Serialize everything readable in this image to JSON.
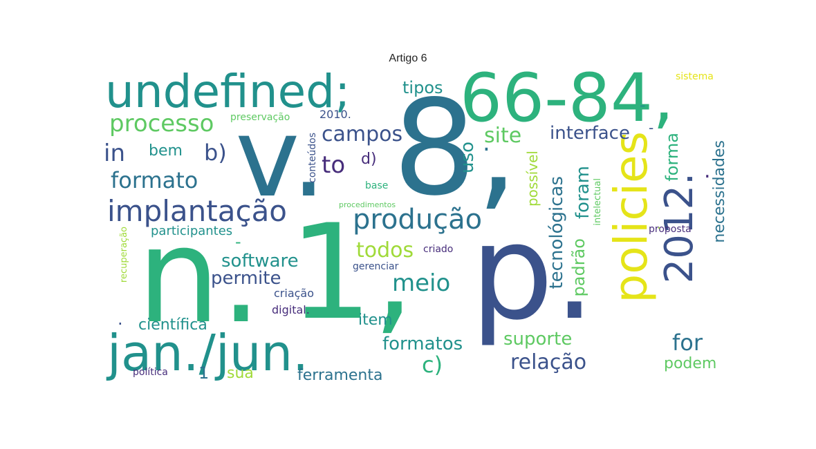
{
  "figure": {
    "title": "Artigo 6"
  },
  "palette": {
    "yellow": "#e5e419",
    "lime": "#a0da39",
    "lightgreen": "#5ec962",
    "green": "#2db27d",
    "teal": "#21918c",
    "blue": "#2c728e",
    "indigo": "#3b528b",
    "purple": "#472d7b",
    "darkpurple": "#440154"
  },
  "words": [
    {
      "text": "undefined;",
      "color": "#21918c"
    },
    {
      "text": "66-84,",
      "color": "#2db27d"
    },
    {
      "text": "v.",
      "color": "#2c728e"
    },
    {
      "text": "8,",
      "color": "#2c728e"
    },
    {
      "text": "n.",
      "color": "#2db27d"
    },
    {
      "text": "1,",
      "color": "#2db27d"
    },
    {
      "text": "p.",
      "color": "#3b528b"
    },
    {
      "text": "jan./jun.",
      "color": "#21918c"
    },
    {
      "text": "policies",
      "color": "#e5e419"
    },
    {
      "text": "2012.",
      "color": "#3b528b"
    },
    {
      "text": "processo",
      "color": "#5ec962"
    },
    {
      "text": "implantação",
      "color": "#3b528b"
    },
    {
      "text": "produção",
      "color": "#2c728e"
    },
    {
      "text": "formato",
      "color": "#2c728e"
    },
    {
      "text": "in",
      "color": "#3b528b"
    },
    {
      "text": "bem",
      "color": "#21918c"
    },
    {
      "text": "b)",
      "color": "#3b528b"
    },
    {
      "text": "to",
      "color": "#472d7b"
    },
    {
      "text": "d)",
      "color": "#472d7b"
    },
    {
      "text": "campos",
      "color": "#3b528b"
    },
    {
      "text": "tipos",
      "color": "#21918c"
    },
    {
      "text": "uso",
      "color": "#21918c"
    },
    {
      "text": "site",
      "color": "#5ec962"
    },
    {
      "text": "interface",
      "color": "#3b528b"
    },
    {
      "text": "meio",
      "color": "#21918c"
    },
    {
      "text": "todos",
      "color": "#a0da39"
    },
    {
      "text": "software",
      "color": "#21918c"
    },
    {
      "text": "permite",
      "color": "#3b528b"
    },
    {
      "text": "científica",
      "color": "#21918c"
    },
    {
      "text": "item",
      "color": "#21918c"
    },
    {
      "text": "formatos",
      "color": "#21918c"
    },
    {
      "text": "suporte",
      "color": "#5ec962"
    },
    {
      "text": "relação",
      "color": "#3b528b"
    },
    {
      "text": "c)",
      "color": "#2db27d"
    },
    {
      "text": "for",
      "color": "#2c728e"
    },
    {
      "text": "podem",
      "color": "#5ec962"
    },
    {
      "text": "ferramenta",
      "color": "#2c728e"
    },
    {
      "text": "sua",
      "color": "#a0da39"
    },
    {
      "text": "1",
      "color": "#2c728e"
    },
    {
      "text": "política",
      "color": "#472d7b"
    },
    {
      "text": "digital.",
      "color": "#472d7b"
    },
    {
      "text": "criação",
      "color": "#3b528b"
    },
    {
      "text": "gerenciar",
      "color": "#3b528b"
    },
    {
      "text": "criado",
      "color": "#472d7b"
    },
    {
      "text": "participantes",
      "color": "#21918c"
    },
    {
      "text": "base",
      "color": "#2db27d"
    },
    {
      "text": "procedimentos",
      "color": "#5ec962"
    },
    {
      "text": "preservação",
      "color": "#5ec962"
    },
    {
      "text": "2010.",
      "color": "#3b528b"
    },
    {
      "text": "sistema",
      "color": "#e5e419"
    },
    {
      "text": "proposta",
      "color": "#472d7b"
    },
    {
      "text": "tecnológicas",
      "color": "#2c728e"
    },
    {
      "text": "possível",
      "color": "#a0da39"
    },
    {
      "text": "padrão",
      "color": "#5ec962"
    },
    {
      "text": "foram",
      "color": "#21918c"
    },
    {
      "text": "forma",
      "color": "#2db27d"
    },
    {
      "text": "necessidades",
      "color": "#2c728e"
    },
    {
      "text": "intelectual",
      "color": "#5ec962"
    },
    {
      "text": "conteúdos",
      "color": "#3b528b"
    },
    {
      "text": "recuperação",
      "color": "#a0da39"
    },
    {
      "text": "-",
      "color": "#21918c"
    },
    {
      "text": "-",
      "color": "#3b528b"
    },
    {
      "text": "-",
      "color": "#2db27d"
    },
    {
      "text": ".",
      "color": "#2c728e"
    },
    {
      "text": ".",
      "color": "#472d7b"
    },
    {
      "text": ".",
      "color": "#3b528b"
    },
    {
      "text": ".",
      "color": "#a0da39"
    }
  ]
}
